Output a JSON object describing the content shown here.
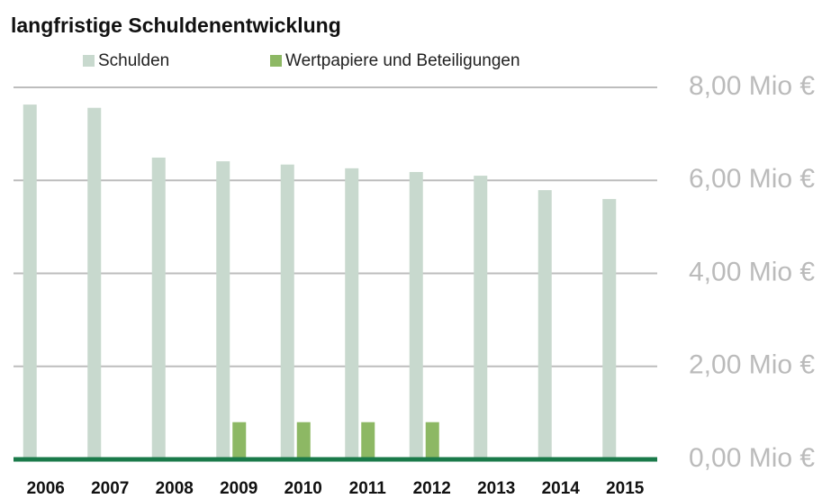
{
  "chart_data": {
    "type": "bar",
    "title": "langfristige Schuldenentwicklung",
    "categories": [
      "2006",
      "2007",
      "2008",
      "2009",
      "2010",
      "2011",
      "2012",
      "2013",
      "2014",
      "2015"
    ],
    "series": [
      {
        "name": "Schulden",
        "color": "#c8d9ce",
        "values": [
          7.63,
          7.56,
          6.49,
          6.41,
          6.34,
          6.26,
          6.18,
          6.1,
          5.79,
          5.6
        ]
      },
      {
        "name": "Wertpapiere und Beteiligungen",
        "color": "#8db864",
        "values": [
          0,
          0,
          0,
          0.8,
          0.8,
          0.8,
          0.8,
          0,
          0,
          0
        ]
      }
    ],
    "ylim": [
      0,
      8
    ],
    "yticks": [
      {
        "value": 0,
        "label": "0,00 Mio €"
      },
      {
        "value": 2,
        "label": "2,00 Mio €"
      },
      {
        "value": 4,
        "label": "4,00 Mio €"
      },
      {
        "value": 6,
        "label": "6,00 Mio €"
      },
      {
        "value": 8,
        "label": "8,00 Mio €"
      }
    ],
    "grid": true
  }
}
